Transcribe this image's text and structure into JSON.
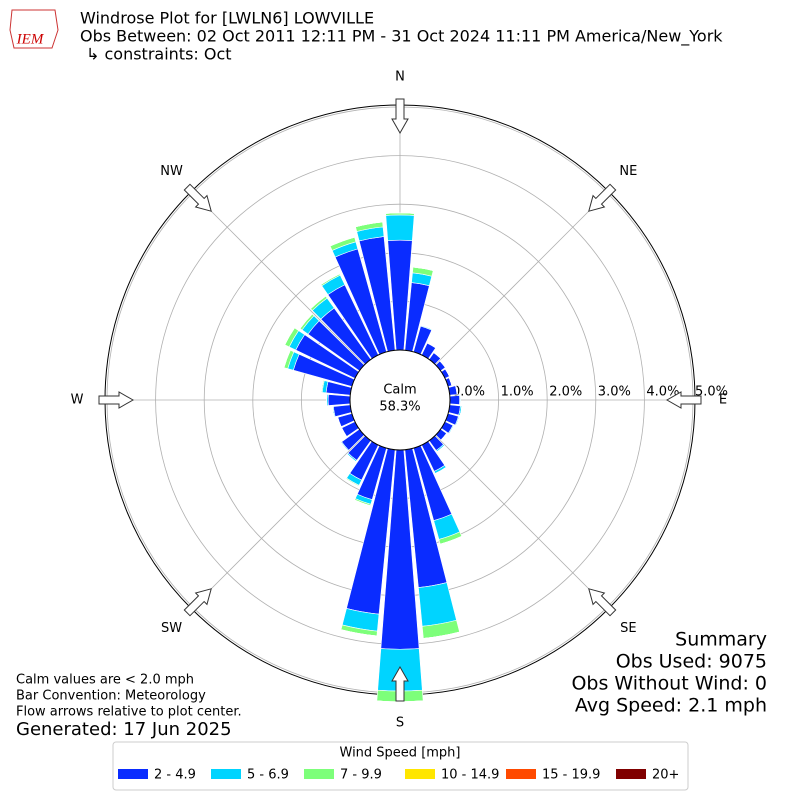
{
  "chart_data": {
    "type": "windrose",
    "title": "Windrose Plot for [LWLN6] LOWVILLE",
    "subtitle": "Obs Between: 02 Oct 2011 12:11 PM - 31 Oct 2024 11:11 PM America/New_York",
    "constraints": "↳ constraints: Oct",
    "logo": "IEM",
    "x": [
      0,
      10,
      20,
      30,
      40,
      50,
      60,
      70,
      80,
      90,
      100,
      110,
      120,
      130,
      140,
      150,
      160,
      170,
      180,
      190,
      200,
      210,
      220,
      230,
      240,
      250,
      260,
      270,
      280,
      290,
      300,
      310,
      320,
      330,
      340,
      350
    ],
    "xticks": [
      {
        "value": 0,
        "label": "N"
      },
      {
        "value": 45,
        "label": "NE"
      },
      {
        "value": 90,
        "label": "E"
      },
      {
        "value": 135,
        "label": "SE"
      },
      {
        "value": 180,
        "label": "S"
      },
      {
        "value": 225,
        "label": "SW"
      },
      {
        "value": 270,
        "label": "W"
      },
      {
        "value": 315,
        "label": "NW"
      }
    ],
    "ylim": [
      0,
      5
    ],
    "yticks": [
      {
        "value": 0,
        "label": "0.0%"
      },
      {
        "value": 1,
        "label": "1.0%"
      },
      {
        "value": 2,
        "label": "2.0%"
      },
      {
        "value": 3,
        "label": "3.0%"
      },
      {
        "value": 4,
        "label": "4.0%"
      },
      {
        "value": 5,
        "label": "5.0%"
      }
    ],
    "calm_label": "Calm",
    "calm_value": 58.3,
    "calm_value_label": "58.3%",
    "legend_title": "Wind Speed [mph]",
    "series": [
      {
        "name": "2 - 4.9",
        "color": "#0a2cff",
        "values": [
          2.26,
          1.4,
          0.55,
          0.27,
          0.17,
          0.12,
          0.1,
          0.08,
          0.15,
          0.2,
          0.22,
          0.22,
          0.18,
          0.15,
          0.25,
          0.6,
          1.55,
          2.85,
          4.1,
          3.4,
          1.1,
          0.8,
          0.5,
          0.45,
          0.3,
          0.3,
          0.35,
          0.45,
          0.5,
          1.25,
          1.35,
          1.3,
          1.3,
          1.6,
          2.2,
          2.35
        ]
      },
      {
        "name": "5 - 6.9",
        "color": "#00d4ff",
        "values": [
          0.52,
          0.2,
          0.02,
          0.01,
          0,
          0,
          0,
          0,
          0.01,
          0.02,
          0.03,
          0.02,
          0.02,
          0.01,
          0.03,
          0.05,
          0.4,
          0.8,
          0.86,
          0.35,
          0.1,
          0.12,
          0.03,
          0.02,
          0.01,
          0.01,
          0.02,
          0.03,
          0.08,
          0.12,
          0.15,
          0.15,
          0.25,
          0.22,
          0.15,
          0.2
        ]
      },
      {
        "name": "7 - 9.9",
        "color": "#7dff7a",
        "values": [
          0.04,
          0.12,
          0,
          0,
          0,
          0,
          0,
          0,
          0,
          0,
          0,
          0,
          0,
          0,
          0,
          0,
          0.1,
          0.25,
          0.22,
          0.1,
          0.03,
          0.02,
          0,
          0,
          0,
          0,
          0,
          0,
          0.02,
          0.08,
          0.1,
          0.05,
          0.05,
          0.03,
          0.1,
          0.1
        ]
      },
      {
        "name": "10 - 14.9",
        "color": "#ffe600",
        "values": [
          0,
          0,
          0,
          0,
          0,
          0,
          0,
          0,
          0,
          0,
          0,
          0,
          0,
          0,
          0,
          0,
          0,
          0,
          0,
          0,
          0,
          0,
          0,
          0,
          0,
          0,
          0,
          0,
          0,
          0,
          0,
          0,
          0,
          0,
          0,
          0
        ]
      },
      {
        "name": "15 - 19.9",
        "color": "#ff4a00",
        "values": [
          0,
          0,
          0,
          0,
          0,
          0,
          0,
          0,
          0,
          0,
          0,
          0,
          0,
          0,
          0,
          0,
          0,
          0,
          0,
          0,
          0,
          0,
          0,
          0,
          0,
          0,
          0,
          0,
          0,
          0,
          0,
          0,
          0,
          0,
          0,
          0
        ]
      },
      {
        "name": "20+",
        "color": "#800000",
        "values": [
          0,
          0,
          0,
          0,
          0,
          0,
          0,
          0,
          0,
          0,
          0,
          0,
          0,
          0,
          0,
          0,
          0,
          0,
          0,
          0,
          0,
          0,
          0,
          0,
          0,
          0,
          0,
          0,
          0,
          0,
          0,
          0,
          0,
          0,
          0,
          0
        ]
      }
    ],
    "summary": [
      "Summary",
      "Obs Used: 9075",
      "Obs Without Wind: 0",
      "Avg Speed: 2.1 mph"
    ],
    "notes": [
      "Calm values are < 2.0 mph",
      "Bar Convention: Meteorology",
      "Flow arrows relative to plot center."
    ],
    "generated": "Generated: 17 Jun 2025"
  }
}
